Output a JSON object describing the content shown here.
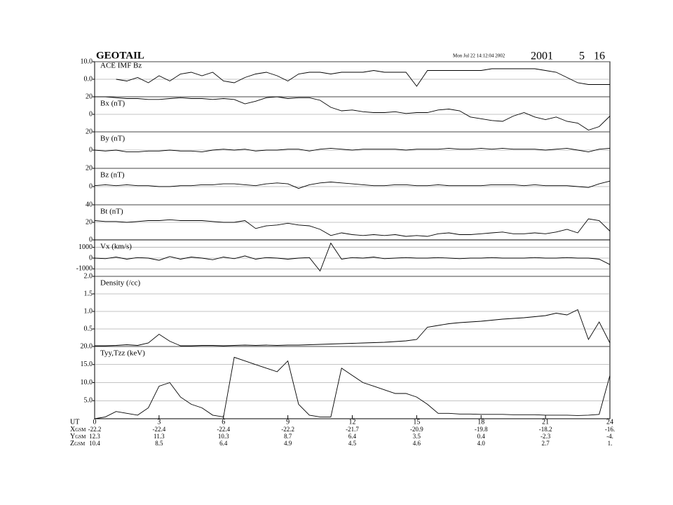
{
  "header": {
    "mission": "GEOTAIL",
    "timestamp": "Mon Jul 22 14:12:04 2002",
    "year": "2001",
    "month": "5",
    "day": "16"
  },
  "orbit": {
    "rows": [
      {
        "coord": "X",
        "frame": "GSM",
        "values": [
          "-22.2",
          "-22.4",
          "-22.4",
          "-22.2",
          "-21.7",
          "-20.9",
          "-19.8",
          "-18.2",
          "-16."
        ]
      },
      {
        "coord": "Y",
        "frame": "GSM",
        "values": [
          "12.3",
          "11.3",
          "10.3",
          "8.7",
          "6.4",
          "3.5",
          "0.4",
          "-2.3",
          "-4."
        ]
      },
      {
        "coord": "Z",
        "frame": "GSM",
        "values": [
          "10.4",
          "8.5",
          "6.4",
          "4.9",
          "4.5",
          "4.6",
          "4.0",
          "2.7",
          "1."
        ]
      }
    ]
  },
  "chart_data": [
    {
      "type": "line",
      "label": "ACE IMF Bz",
      "color": "#000000",
      "grid": true,
      "xlim": [
        0,
        24
      ],
      "ylim": [
        -10,
        10
      ],
      "yticks": [
        {
          "value": 10,
          "label": "10.0"
        },
        {
          "value": 0,
          "label": "0.0"
        }
      ],
      "x": [
        0,
        0.5,
        1,
        1.5,
        2,
        2.5,
        3,
        3.5,
        4,
        4.5,
        5,
        5.5,
        6,
        6.5,
        7,
        7.5,
        8,
        8.5,
        9,
        9.5,
        10,
        10.5,
        11,
        11.5,
        12,
        12.5,
        13,
        13.5,
        14,
        14.5,
        15,
        15.5,
        16,
        16.5,
        17,
        17.5,
        18,
        18.5,
        19,
        19.5,
        20,
        20.5,
        21,
        21.5,
        22,
        22.5,
        23,
        23.5,
        24
      ],
      "values": [
        null,
        null,
        0,
        -1,
        1,
        -2,
        2,
        -1,
        3,
        4,
        2,
        4,
        -1,
        -2,
        1,
        3,
        4,
        2,
        -1,
        3,
        4,
        4,
        3,
        4,
        4,
        4,
        5,
        4,
        4,
        4,
        -4,
        5,
        5,
        5,
        5,
        5,
        5,
        6,
        6,
        6,
        6,
        6,
        5,
        4,
        1,
        -2,
        -3,
        -3,
        -3
      ]
    },
    {
      "type": "line",
      "label": "Bx (nT)",
      "color": "#000000",
      "grid": true,
      "xlim": [
        0,
        24
      ],
      "ylim": [
        -20,
        20
      ],
      "yticks": [
        20,
        0
      ],
      "x": [
        0,
        0.5,
        1,
        1.5,
        2,
        2.5,
        3,
        3.5,
        4,
        4.5,
        5,
        5.5,
        6,
        6.5,
        7,
        7.5,
        8,
        8.5,
        9,
        9.5,
        10,
        10.5,
        11,
        11.5,
        12,
        12.5,
        13,
        13.5,
        14,
        14.5,
        15,
        15.5,
        16,
        16.5,
        17,
        17.5,
        18,
        18.5,
        19,
        19.5,
        20,
        20.5,
        21,
        21.5,
        22,
        22.5,
        23,
        23.5,
        24
      ],
      "values": [
        20,
        20,
        19,
        18,
        18,
        17,
        17,
        18,
        19,
        18,
        18,
        17,
        18,
        17,
        12,
        15,
        19,
        20,
        18,
        19,
        19,
        16,
        8,
        4,
        5,
        3,
        2,
        2,
        3,
        1,
        2,
        2,
        5,
        6,
        4,
        -3,
        -5,
        -7,
        -8,
        -2,
        2,
        -3,
        -6,
        -3,
        -8,
        -10,
        -18,
        -14,
        -2
      ]
    },
    {
      "type": "line",
      "label": "By (nT)",
      "color": "#000000",
      "grid": true,
      "xlim": [
        0,
        24
      ],
      "ylim": [
        -20,
        20
      ],
      "yticks": [
        20,
        0
      ],
      "x": [
        0,
        0.5,
        1,
        1.5,
        2,
        2.5,
        3,
        3.5,
        4,
        4.5,
        5,
        5.5,
        6,
        6.5,
        7,
        7.5,
        8,
        8.5,
        9,
        9.5,
        10,
        10.5,
        11,
        11.5,
        12,
        12.5,
        13,
        13.5,
        14,
        14.5,
        15,
        15.5,
        16,
        16.5,
        17,
        17.5,
        18,
        18.5,
        19,
        19.5,
        20,
        20.5,
        21,
        21.5,
        22,
        22.5,
        23,
        23.5,
        24
      ],
      "values": [
        0,
        -1,
        0,
        -2,
        -2,
        -1,
        -1,
        0,
        -1,
        -1,
        -2,
        0,
        1,
        0,
        1,
        -1,
        0,
        0,
        1,
        1,
        -1,
        1,
        2,
        1,
        0,
        1,
        1,
        1,
        1,
        0,
        1,
        1,
        1,
        2,
        1,
        1,
        2,
        1,
        2,
        1,
        1,
        1,
        0,
        1,
        2,
        0,
        -2,
        1,
        2
      ]
    },
    {
      "type": "line",
      "label": "Bz (nT)",
      "color": "#000000",
      "grid": true,
      "xlim": [
        0,
        24
      ],
      "ylim": [
        -20,
        20
      ],
      "yticks": [
        20,
        0
      ],
      "x": [
        0,
        0.5,
        1,
        1.5,
        2,
        2.5,
        3,
        3.5,
        4,
        4.5,
        5,
        5.5,
        6,
        6.5,
        7,
        7.5,
        8,
        8.5,
        9,
        9.5,
        10,
        10.5,
        11,
        11.5,
        12,
        12.5,
        13,
        13.5,
        14,
        14.5,
        15,
        15.5,
        16,
        16.5,
        17,
        17.5,
        18,
        18.5,
        19,
        19.5,
        20,
        20.5,
        21,
        21.5,
        22,
        22.5,
        23,
        23.5,
        24
      ],
      "values": [
        1,
        2,
        1,
        2,
        1,
        1,
        0,
        0,
        1,
        1,
        2,
        2,
        3,
        3,
        2,
        1,
        3,
        4,
        3,
        -2,
        2,
        4,
        5,
        4,
        3,
        2,
        1,
        1,
        2,
        2,
        1,
        1,
        2,
        1,
        1,
        1,
        1,
        2,
        2,
        2,
        1,
        2,
        1,
        1,
        1,
        0,
        -1,
        3,
        6
      ]
    },
    {
      "type": "line",
      "label": "Bt (nT)",
      "color": "#000000",
      "grid": true,
      "xlim": [
        0,
        24
      ],
      "ylim": [
        0,
        40
      ],
      "yticks": [
        40,
        20,
        0
      ],
      "x": [
        0,
        0.5,
        1,
        1.5,
        2,
        2.5,
        3,
        3.5,
        4,
        4.5,
        5,
        5.5,
        6,
        6.5,
        7,
        7.5,
        8,
        8.5,
        9,
        9.5,
        10,
        10.5,
        11,
        11.5,
        12,
        12.5,
        13,
        13.5,
        14,
        14.5,
        15,
        15.5,
        16,
        16.5,
        17,
        17.5,
        18,
        18.5,
        19,
        19.5,
        20,
        20.5,
        21,
        21.5,
        22,
        22.5,
        23,
        23.5,
        24
      ],
      "values": [
        22,
        21,
        21,
        20,
        21,
        22,
        22,
        23,
        22,
        22,
        22,
        21,
        20,
        20,
        22,
        13,
        16,
        17,
        19,
        17,
        16,
        12,
        5,
        8,
        6,
        5,
        6,
        5,
        6,
        4,
        5,
        4,
        7,
        8,
        6,
        6,
        7,
        8,
        9,
        7,
        7,
        8,
        7,
        9,
        12,
        8,
        24,
        22,
        10
      ]
    },
    {
      "type": "line",
      "label": "Vx (km/s)",
      "color": "#000000",
      "grid": true,
      "xlim": [
        0,
        24
      ],
      "ylim": [
        -1700,
        1700
      ],
      "yticks": [
        1000,
        0,
        -1000
      ],
      "x": [
        0,
        0.5,
        1,
        1.5,
        2,
        2.5,
        3,
        3.5,
        4,
        4.5,
        5,
        5.5,
        6,
        6.5,
        7,
        7.5,
        8,
        8.5,
        9,
        9.5,
        10,
        10.5,
        11,
        11.5,
        12,
        12.5,
        13,
        13.5,
        14,
        14.5,
        15,
        15.5,
        16,
        16.5,
        17,
        17.5,
        18,
        18.5,
        19,
        19.5,
        20,
        20.5,
        21,
        21.5,
        22,
        22.5,
        23,
        23.5,
        24
      ],
      "values": [
        0,
        -50,
        100,
        -100,
        50,
        0,
        -200,
        150,
        -100,
        100,
        0,
        -150,
        100,
        -50,
        200,
        -100,
        50,
        0,
        -100,
        0,
        50,
        -1200,
        1400,
        -100,
        50,
        0,
        100,
        -50,
        0,
        50,
        0,
        0,
        50,
        0,
        -50,
        0,
        0,
        50,
        0,
        0,
        0,
        50,
        0,
        0,
        50,
        0,
        0,
        -100,
        -600
      ]
    },
    {
      "type": "line",
      "label": "Density (/cc)",
      "color": "#000000",
      "grid": true,
      "xlim": [
        0,
        24
      ],
      "ylim": [
        0,
        2
      ],
      "yticks": [
        {
          "value": 2,
          "label": "2.0"
        },
        1.5,
        {
          "value": 1,
          "label": "1.0"
        },
        0.5
      ],
      "x": [
        0,
        0.5,
        1,
        1.5,
        2,
        2.5,
        3,
        3.5,
        4,
        4.5,
        5,
        5.5,
        6,
        6.5,
        7,
        7.5,
        8,
        8.5,
        9,
        9.5,
        10,
        10.5,
        11,
        11.5,
        12,
        12.5,
        13,
        13.5,
        14,
        14.5,
        15,
        15.5,
        16,
        16.5,
        17,
        17.5,
        18,
        18.5,
        19,
        19.5,
        20,
        20.5,
        21,
        21.5,
        22,
        22.5,
        23,
        23.5,
        24
      ],
      "values": [
        0.02,
        0.02,
        0.03,
        0.05,
        0.03,
        0.1,
        0.35,
        0.15,
        0.02,
        0.02,
        0.03,
        0.03,
        0.02,
        0.03,
        0.04,
        0.03,
        0.04,
        0.03,
        0.04,
        0.04,
        0.05,
        0.06,
        0.07,
        0.08,
        0.09,
        0.1,
        0.11,
        0.12,
        0.14,
        0.16,
        0.2,
        0.55,
        0.6,
        0.65,
        0.68,
        0.7,
        0.72,
        0.75,
        0.78,
        0.8,
        0.82,
        0.85,
        0.88,
        0.95,
        0.9,
        1.05,
        0.2,
        0.7,
        0.1
      ]
    },
    {
      "type": "line",
      "label": "Tyy,Tzz (keV)",
      "color": "#000000",
      "grid": true,
      "xlim": [
        0,
        24
      ],
      "ylim": [
        0,
        20
      ],
      "yticks": [
        {
          "value": 20,
          "label": "20.0"
        },
        {
          "value": 15,
          "label": "15.0"
        },
        {
          "value": 10,
          "label": "10.0"
        },
        {
          "value": 5,
          "label": "5.0"
        }
      ],
      "xlabel": "UT",
      "xticks": [
        0,
        3,
        6,
        9,
        12,
        15,
        18,
        21,
        24
      ],
      "x": [
        0,
        0.5,
        1,
        1.5,
        2,
        2.5,
        3,
        3.5,
        4,
        4.5,
        5,
        5.5,
        6,
        6.5,
        7,
        7.5,
        8,
        8.5,
        9,
        9.5,
        10,
        10.5,
        11,
        11.5,
        12,
        12.5,
        13,
        13.5,
        14,
        14.5,
        15,
        15.5,
        16,
        16.5,
        17,
        17.5,
        18,
        18.5,
        19,
        19.5,
        20,
        20.5,
        21,
        21.5,
        22,
        22.5,
        23,
        23.5,
        24
      ],
      "values": [
        0,
        0.5,
        2,
        1.5,
        1,
        3,
        9,
        10,
        6,
        4,
        3,
        1,
        0.5,
        17,
        16,
        15,
        14,
        13,
        16,
        4,
        1,
        0.5,
        0.5,
        14,
        12,
        10,
        9,
        8,
        7,
        7,
        6,
        4,
        1.5,
        1.5,
        1.3,
        1.3,
        1.2,
        1.2,
        1.2,
        1.1,
        1.1,
        1.1,
        1,
        1,
        1,
        0.9,
        1,
        1.2,
        12
      ]
    }
  ]
}
